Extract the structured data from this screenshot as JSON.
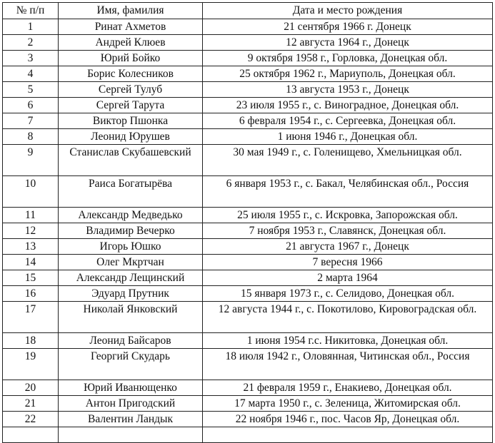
{
  "headers": [
    "№ п/п",
    "Имя, фамилия",
    "Дата и место рождения"
  ],
  "rows": [
    {
      "num": "1",
      "name": "Ринат Ахметов",
      "birth": "21 сентября 1966 г. Донецк"
    },
    {
      "num": "2",
      "name": "Андрей Клюев",
      "birth": "12 августа 1964 г., Донецк"
    },
    {
      "num": "3",
      "name": "Юрий Бойко",
      "birth": "9 октября 1958 г., Горловка, Донецкая обл."
    },
    {
      "num": "4",
      "name": "Борис Колесников",
      "birth": "25 октября 1962 г., Мариуполь, Донецкая обл."
    },
    {
      "num": "5",
      "name": "Сергей Тулуб",
      "birth": "13 августа 1953 г., Донецк"
    },
    {
      "num": "6",
      "name": "Сергей Тарута",
      "birth": "23 июля 1955 г., с. Виноградное, Донецкая обл."
    },
    {
      "num": "7",
      "name": "Виктор Пшонка",
      "birth": "6 февраля 1954 г., с. Сергеевка, Донецкая обл."
    },
    {
      "num": "8",
      "name": "Леонид Юрушев",
      "birth": "1 июня 1946 г., Донецкая обл."
    },
    {
      "num": "9",
      "name": "Станислав Скубашевский",
      "birth": "30 мая 1949 г., с. Голенищево, Хмельницкая обл.",
      "tall": true
    },
    {
      "num": "10",
      "name": "Раиса Богатырёва",
      "birth": "6 января 1953 г., с. Бакал, Челябинская обл., Россия",
      "tall": true
    },
    {
      "num": "11",
      "name": "Александр Медведько",
      "birth": "25 июля 1955 г., с. Искровка, Запорожская обл."
    },
    {
      "num": "12",
      "name": "Владимир Вечерко",
      "birth": "7 ноября 1953 г., Славянск, Донецкая обл."
    },
    {
      "num": "13",
      "name": "Игорь Юшко",
      "birth": "21 августа 1967 г., Донецк"
    },
    {
      "num": "14",
      "name": "Олег Мкртчан",
      "birth": "7 вересня 1966"
    },
    {
      "num": "15",
      "name": "Александр Лещинский",
      "birth": "2 марта 1964"
    },
    {
      "num": "16",
      "name": "Эдуард Прутник",
      "birth": "15 января 1973 г., с. Селидово, Донецкая обл."
    },
    {
      "num": "17",
      "name": "Николай Янковский",
      "birth": "12 августа 1944 г., с. Покотилово, Кировоградская обл.",
      "tall": true
    },
    {
      "num": "18",
      "name": "Леонид Байсаров",
      "birth": "1 июня 1954 г.с. Никитовка, Донецкая обл."
    },
    {
      "num": "19",
      "name": "Георгий Скударь",
      "birth": "18 июля 1942 г., Оловянная, Читинская обл., Россия",
      "tall": true
    },
    {
      "num": "20",
      "name": "Юрий Иванющенко",
      "birth": "21 февраля 1959 г., Енакиево, Донецкая обл."
    },
    {
      "num": "21",
      "name": "Антон Пригодский",
      "birth": "17 марта 1950 г., с. Зеленица, Житомирская обл."
    },
    {
      "num": "22",
      "name": "Валентин Ландык",
      "birth": "22 ноября 1946 г., пос. Часов Яр, Донецкая обл."
    },
    {
      "num": "",
      "name": "",
      "birth": ""
    }
  ]
}
